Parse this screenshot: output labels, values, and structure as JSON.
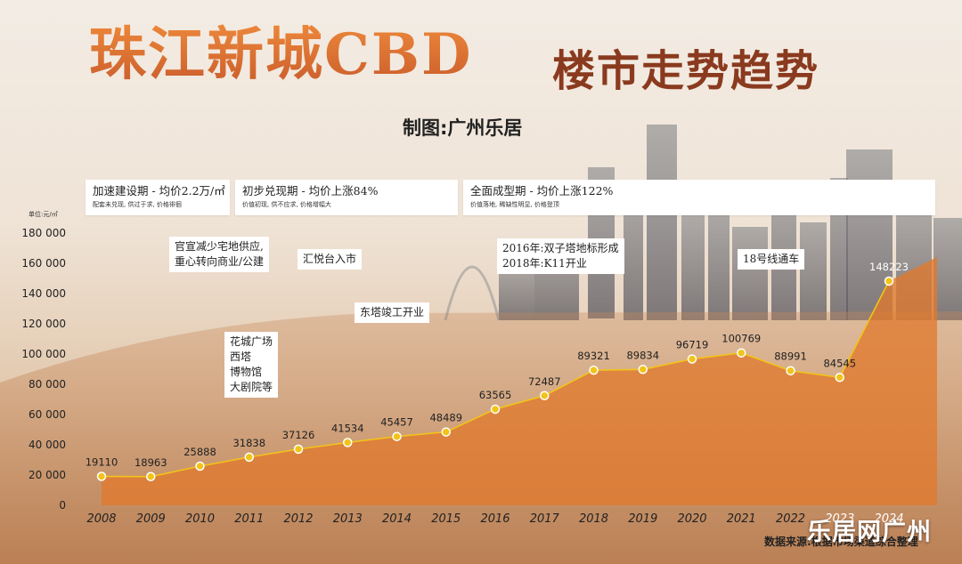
{
  "header": {
    "title": "珠江新城CBD",
    "subtitle": "楼市走势趋势",
    "credit": "制图:广州乐居"
  },
  "periods": [
    {
      "title": "加速建设期 - 均价2.2万/㎡",
      "desc": "配套未兑现, 供过于求, 价格徘徊"
    },
    {
      "title": "初步兑现期 - 均价上涨84%",
      "desc": "价值初现, 供不应求, 价格增幅大"
    },
    {
      "title": "全面成型期 - 均价上涨122%",
      "desc": "价值落地, 稀缺性明显, 价格登顶"
    }
  ],
  "unit_label": "单位:元/㎡",
  "annotations": [
    {
      "lines": [
        "官宣减少宅地供应,",
        "重心转向商业/公建"
      ]
    },
    {
      "lines": [
        "汇悦台入市"
      ]
    },
    {
      "lines": [
        "东塔竣工开业"
      ]
    },
    {
      "lines": [
        "花城广场",
        "西塔",
        "博物馆",
        "大剧院等"
      ]
    },
    {
      "lines": [
        "2016年:双子塔地标形成",
        "2018年:K11开业"
      ]
    },
    {
      "lines": [
        "18号线通车"
      ]
    }
  ],
  "source": "数据来源:根据市场渠道综合整理",
  "watermark": "乐居网广州",
  "colors": {
    "area": "#e07a2e",
    "line": "#f2c319",
    "title": "#d8703a"
  },
  "chart_data": {
    "type": "area",
    "categories": [
      "2008",
      "2009",
      "2010",
      "2011",
      "2012",
      "2013",
      "2014",
      "2015",
      "2016",
      "2017",
      "2018",
      "2019",
      "2020",
      "2021",
      "2022",
      "2023",
      "2024"
    ],
    "values": [
      19110,
      18963,
      25888,
      31838,
      37126,
      41534,
      45457,
      48489,
      63565,
      72487,
      89321,
      89834,
      96719,
      100769,
      88991,
      84545,
      148223
    ],
    "value_labels": [
      "19110",
      "18963",
      "25888",
      "31838",
      "37126",
      "41534",
      "45457",
      "48489",
      "63565",
      "72487",
      "89321",
      "89834",
      "96719",
      "100769",
      "88991",
      "84545",
      "148223"
    ],
    "ylim": [
      0,
      180000
    ],
    "yticks": [
      0,
      20000,
      40000,
      60000,
      80000,
      100000,
      120000,
      140000,
      160000,
      180000
    ],
    "ytick_labels": [
      "0",
      "20 000",
      "40 000",
      "60 000",
      "80 000",
      "100 000",
      "120 000",
      "140 000",
      "160 000",
      "180 000"
    ],
    "grid": false,
    "legend": "none"
  }
}
